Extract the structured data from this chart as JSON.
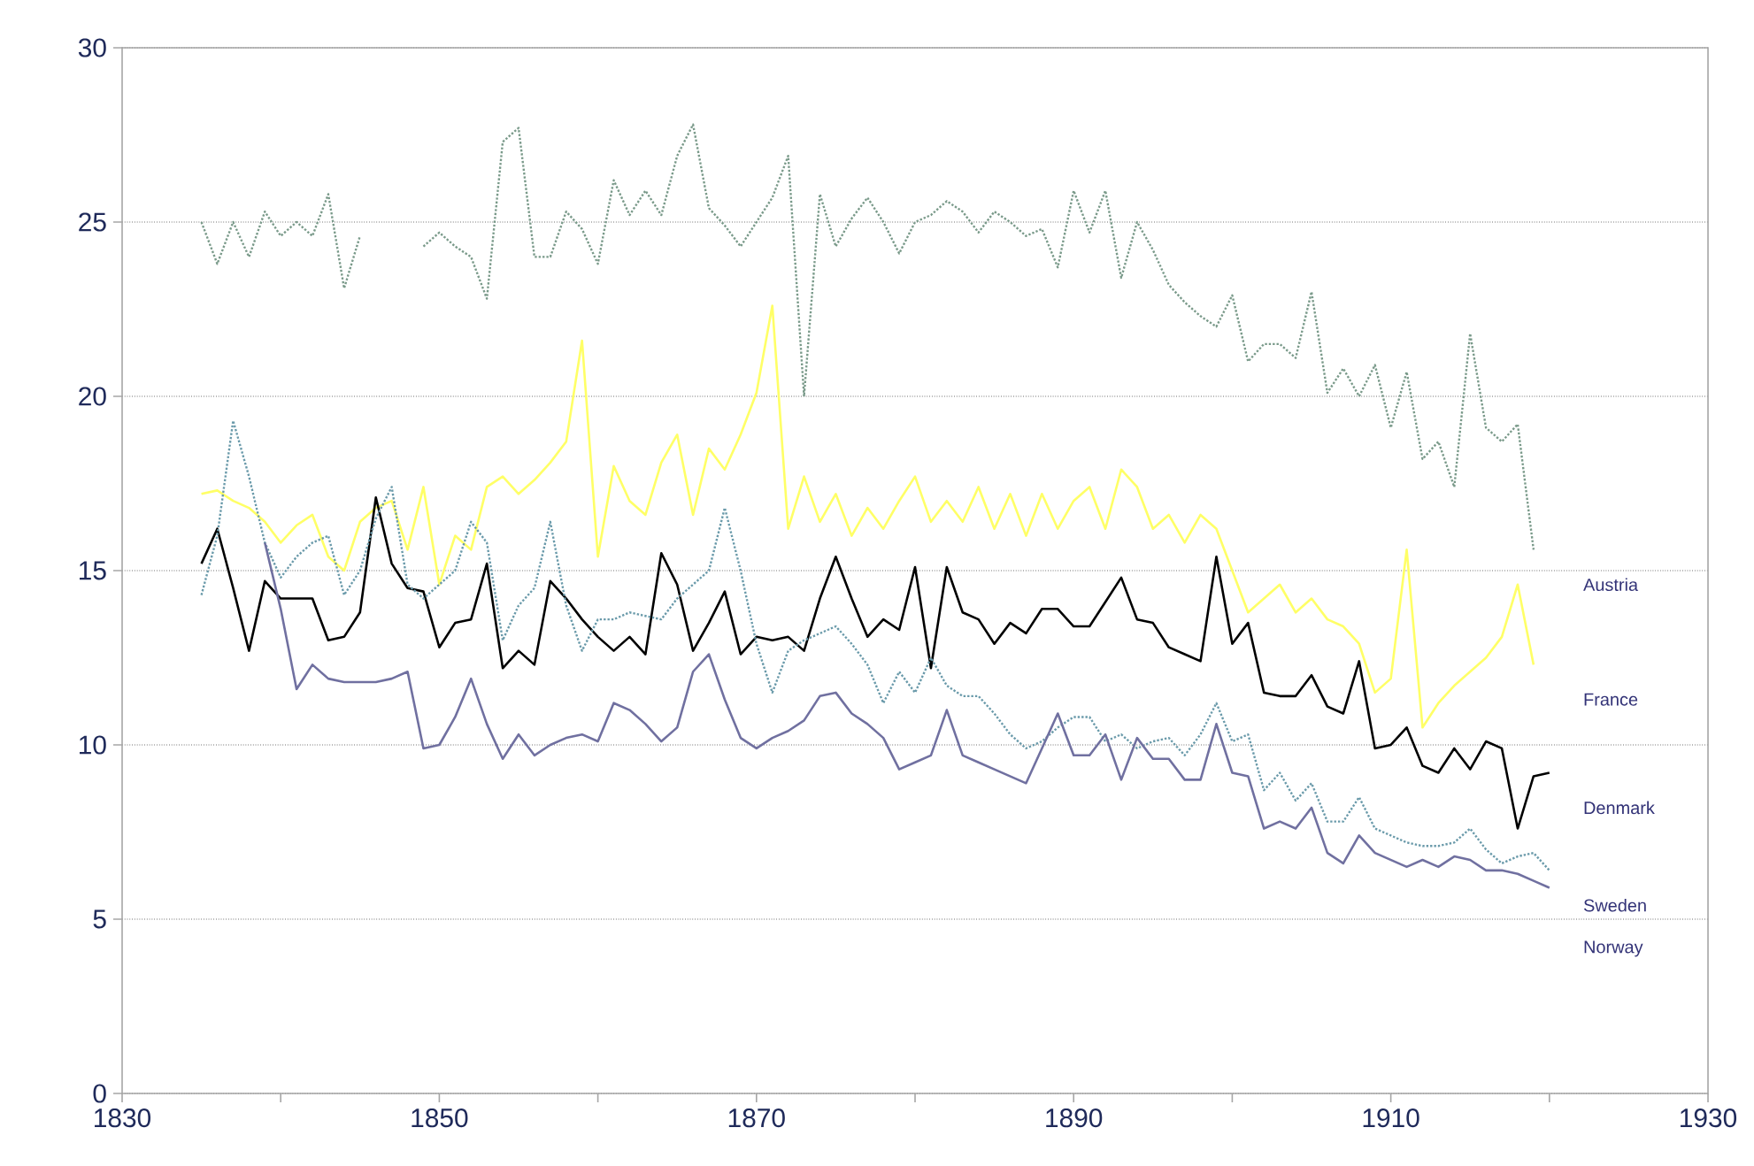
{
  "chart_data": {
    "type": "line",
    "x": [
      1835,
      1836,
      1837,
      1838,
      1839,
      1840,
      1841,
      1842,
      1843,
      1844,
      1845,
      1846,
      1847,
      1848,
      1849,
      1850,
      1851,
      1852,
      1853,
      1854,
      1855,
      1856,
      1857,
      1858,
      1859,
      1860,
      1861,
      1862,
      1863,
      1864,
      1865,
      1866,
      1867,
      1868,
      1869,
      1870,
      1871,
      1872,
      1873,
      1874,
      1875,
      1876,
      1877,
      1878,
      1879,
      1880,
      1881,
      1882,
      1883,
      1884,
      1885,
      1886,
      1887,
      1888,
      1889,
      1890,
      1891,
      1892,
      1893,
      1894,
      1895,
      1896,
      1897,
      1898,
      1899,
      1900,
      1901,
      1902,
      1903,
      1904,
      1905,
      1906,
      1907,
      1908,
      1909,
      1910,
      1911,
      1912,
      1913,
      1914,
      1915,
      1916,
      1917,
      1918,
      1919,
      1920
    ],
    "series": [
      {
        "name": "Austria",
        "color": "#7a9a8a",
        "line_style": "dotted",
        "values": [
          25.0,
          23.8,
          25.0,
          24.0,
          25.3,
          24.6,
          25.0,
          24.6,
          25.8,
          23.1,
          24.6,
          null,
          null,
          null,
          24.3,
          24.7,
          24.3,
          24.0,
          22.8,
          27.3,
          27.7,
          24.0,
          24.0,
          25.3,
          24.8,
          23.8,
          26.2,
          25.2,
          25.9,
          25.2,
          26.9,
          27.8,
          25.4,
          24.9,
          24.3,
          25.0,
          25.7,
          26.9,
          20.0,
          25.8,
          24.3,
          25.1,
          25.7,
          25.0,
          24.1,
          25.0,
          25.2,
          25.6,
          25.3,
          24.7,
          25.3,
          25.0,
          24.6,
          24.8,
          23.7,
          25.9,
          24.7,
          25.9,
          23.4,
          25.0,
          24.2,
          23.2,
          22.7,
          22.3,
          22.0,
          22.9,
          21.0,
          21.5,
          21.5,
          21.1,
          23.0,
          20.1,
          20.8,
          20.0,
          20.9,
          19.1,
          20.7,
          18.2,
          18.7,
          17.4,
          21.8,
          19.1,
          18.7,
          19.2,
          15.6,
          null
        ]
      },
      {
        "name": "France",
        "color": "#ffff66",
        "line_style": "solid",
        "values": [
          17.2,
          17.3,
          17.0,
          16.8,
          16.4,
          15.8,
          16.3,
          16.6,
          15.4,
          15.0,
          16.4,
          16.8,
          17.0,
          15.6,
          17.4,
          14.6,
          16.0,
          15.6,
          17.4,
          17.7,
          17.2,
          17.6,
          18.1,
          18.7,
          21.6,
          15.4,
          18.0,
          17.0,
          16.6,
          18.1,
          18.9,
          16.6,
          18.5,
          17.9,
          18.9,
          20.1,
          22.6,
          16.2,
          17.7,
          16.4,
          17.2,
          16.0,
          16.8,
          16.2,
          17.0,
          17.7,
          16.4,
          17.0,
          16.4,
          17.4,
          16.2,
          17.2,
          16.0,
          17.2,
          16.2,
          17.0,
          17.4,
          16.2,
          17.9,
          17.4,
          16.2,
          16.6,
          15.8,
          16.6,
          16.2,
          15.0,
          13.8,
          14.2,
          14.6,
          13.8,
          14.2,
          13.6,
          13.4,
          12.9,
          11.5,
          11.9,
          15.6,
          10.5,
          11.2,
          11.7,
          12.1,
          12.5,
          13.1,
          14.6,
          12.3,
          null
        ]
      },
      {
        "name": "Denmark",
        "color": "#000000",
        "line_style": "solid",
        "values": [
          15.2,
          16.2,
          14.5,
          12.7,
          14.7,
          14.2,
          14.2,
          14.2,
          13.0,
          13.1,
          13.8,
          17.1,
          15.2,
          14.5,
          14.4,
          12.8,
          13.5,
          13.6,
          15.2,
          12.2,
          12.7,
          12.3,
          14.7,
          14.2,
          13.6,
          13.1,
          12.7,
          13.1,
          12.6,
          15.5,
          14.6,
          12.7,
          13.5,
          14.4,
          12.6,
          13.1,
          13.0,
          13.1,
          12.7,
          14.2,
          15.4,
          14.2,
          13.1,
          13.6,
          13.3,
          15.1,
          12.2,
          15.1,
          13.8,
          13.6,
          12.9,
          13.5,
          13.2,
          13.9,
          13.9,
          13.4,
          13.4,
          14.1,
          14.8,
          13.6,
          13.5,
          12.8,
          12.6,
          12.4,
          15.4,
          12.9,
          13.5,
          11.5,
          11.4,
          11.4,
          12.0,
          11.1,
          10.9,
          12.4,
          9.9,
          10.0,
          10.5,
          9.4,
          9.2,
          9.9,
          9.3,
          10.1,
          9.9,
          7.6,
          9.1,
          9.2
        ]
      },
      {
        "name": "Sweden",
        "color": "#6a9aaa",
        "line_style": "dotted",
        "values": [
          14.3,
          16.0,
          19.3,
          17.7,
          15.8,
          14.8,
          15.4,
          15.8,
          16.0,
          14.3,
          15.0,
          16.5,
          17.4,
          14.6,
          14.2,
          14.6,
          15.0,
          16.4,
          15.8,
          13.0,
          14.0,
          14.5,
          16.4,
          14.0,
          12.7,
          13.6,
          13.6,
          13.8,
          13.7,
          13.6,
          14.2,
          14.6,
          15.0,
          16.8,
          15.0,
          12.9,
          11.5,
          12.7,
          13.0,
          13.2,
          13.4,
          12.9,
          12.3,
          11.2,
          12.1,
          11.5,
          12.5,
          11.7,
          11.4,
          11.4,
          10.9,
          10.3,
          9.9,
          10.1,
          10.5,
          10.8,
          10.8,
          10.1,
          10.3,
          9.9,
          10.1,
          10.2,
          9.7,
          10.3,
          11.2,
          10.1,
          10.3,
          8.7,
          9.2,
          8.4,
          8.9,
          7.8,
          7.8,
          8.5,
          7.6,
          7.4,
          7.2,
          7.1,
          7.1,
          7.2,
          7.6,
          7.0,
          6.6,
          6.8,
          6.9,
          6.4
        ]
      },
      {
        "name": "Norway",
        "color": "#7070a0",
        "line_style": "solid",
        "values": [
          null,
          null,
          null,
          null,
          15.8,
          13.9,
          11.6,
          12.3,
          11.9,
          11.8,
          11.8,
          11.8,
          11.9,
          12.1,
          9.9,
          10.0,
          10.8,
          11.9,
          10.6,
          9.6,
          10.3,
          9.7,
          10.0,
          10.2,
          10.3,
          10.1,
          11.2,
          11.0,
          10.6,
          10.1,
          10.5,
          12.1,
          12.6,
          11.3,
          10.2,
          9.9,
          10.2,
          10.4,
          10.7,
          11.4,
          11.5,
          10.9,
          10.6,
          10.2,
          9.3,
          9.5,
          9.7,
          11.0,
          9.7,
          9.5,
          9.3,
          9.1,
          8.9,
          9.9,
          10.9,
          9.7,
          9.7,
          10.3,
          9.0,
          10.2,
          9.6,
          9.6,
          9.0,
          9.0,
          10.6,
          9.2,
          9.1,
          7.6,
          7.8,
          7.6,
          8.2,
          6.9,
          6.6,
          7.4,
          6.9,
          6.7,
          6.5,
          6.7,
          6.5,
          6.8,
          6.7,
          6.4,
          6.4,
          6.3,
          6.1,
          5.9
        ]
      }
    ],
    "xlim": [
      1830,
      1930
    ],
    "xticks": [
      1830,
      {
        "value": 1840,
        "label": null
      },
      1850,
      {
        "value": 1860,
        "label": null
      },
      1870,
      {
        "value": 1880,
        "label": null
      },
      1890,
      {
        "value": 1900,
        "label": null
      },
      1910,
      {
        "value": 1920,
        "label": null
      },
      1930
    ],
    "ylim": [
      0,
      30
    ],
    "yticks": [
      0,
      5,
      10,
      15,
      20,
      25,
      30
    ],
    "grid": "y"
  }
}
